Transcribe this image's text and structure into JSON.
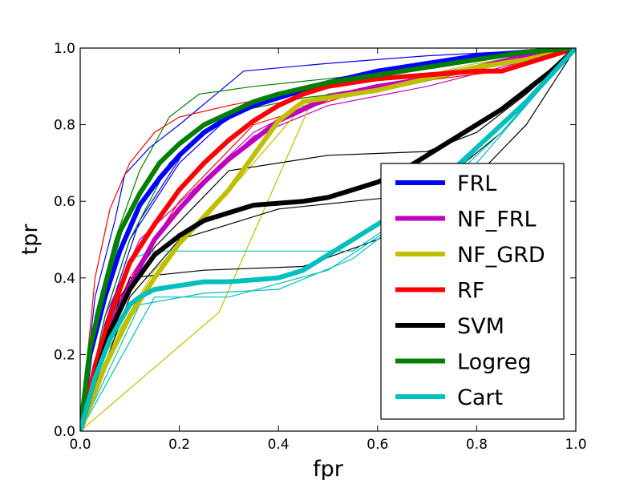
{
  "chart_data": {
    "type": "line",
    "xlabel": "fpr",
    "ylabel": "tpr",
    "xlim": [
      0.0,
      1.0
    ],
    "ylim": [
      0.0,
      1.0
    ],
    "xticks": [
      "0.0",
      "0.2",
      "0.4",
      "0.6",
      "0.8",
      "1.0"
    ],
    "yticks": [
      "0.0",
      "0.2",
      "0.4",
      "0.6",
      "0.8",
      "1.0"
    ],
    "grid": false,
    "legend_position": "lower-right",
    "series": [
      {
        "name": "FRL",
        "color": "#0000ff",
        "x": [
          0.0,
          0.02,
          0.05,
          0.08,
          0.12,
          0.16,
          0.2,
          0.25,
          0.3,
          0.35,
          0.4,
          0.5,
          0.6,
          0.7,
          0.8,
          0.9,
          1.0
        ],
        "y": [
          0.0,
          0.2,
          0.35,
          0.47,
          0.59,
          0.66,
          0.72,
          0.78,
          0.82,
          0.85,
          0.87,
          0.91,
          0.94,
          0.96,
          0.98,
          0.99,
          1.0
        ],
        "runs": [
          {
            "x": [
              0.0,
              0.03,
              0.07,
              0.09,
              0.14,
              0.2,
              0.33,
              0.5,
              0.7,
              1.0
            ],
            "y": [
              0.0,
              0.35,
              0.55,
              0.67,
              0.74,
              0.8,
              0.94,
              0.96,
              0.98,
              1.0
            ]
          },
          {
            "x": [
              0.0,
              0.05,
              0.1,
              0.2,
              0.3,
              0.45,
              0.6,
              0.8,
              1.0
            ],
            "y": [
              0.0,
              0.3,
              0.5,
              0.7,
              0.82,
              0.9,
              0.94,
              0.97,
              1.0
            ]
          },
          {
            "x": [
              0.0,
              0.05,
              0.12,
              0.22,
              0.32,
              0.45,
              0.6,
              0.8,
              1.0
            ],
            "y": [
              0.0,
              0.28,
              0.55,
              0.75,
              0.84,
              0.9,
              0.93,
              0.97,
              1.0
            ]
          }
        ]
      },
      {
        "name": "NF_FRL",
        "color": "#bf00bf",
        "x": [
          0.0,
          0.03,
          0.06,
          0.1,
          0.15,
          0.2,
          0.25,
          0.3,
          0.35,
          0.4,
          0.45,
          0.5,
          0.6,
          0.7,
          0.8,
          0.9,
          1.0
        ],
        "y": [
          0.0,
          0.15,
          0.27,
          0.38,
          0.5,
          0.58,
          0.65,
          0.71,
          0.76,
          0.81,
          0.84,
          0.87,
          0.9,
          0.92,
          0.95,
          0.98,
          1.0
        ],
        "runs": [
          {
            "x": [
              0.0,
              0.06,
              0.14,
              0.25,
              0.35,
              0.5,
              0.7,
              1.0
            ],
            "y": [
              0.0,
              0.25,
              0.48,
              0.65,
              0.77,
              0.85,
              0.9,
              1.0
            ]
          },
          {
            "x": [
              0.0,
              0.05,
              0.12,
              0.22,
              0.35,
              0.5,
              0.75,
              1.0
            ],
            "y": [
              0.0,
              0.3,
              0.5,
              0.62,
              0.78,
              0.88,
              0.93,
              1.0
            ]
          }
        ]
      },
      {
        "name": "NF_GRD",
        "color": "#bfbf00",
        "x": [
          0.0,
          0.05,
          0.1,
          0.15,
          0.2,
          0.25,
          0.3,
          0.35,
          0.4,
          0.45,
          0.5,
          0.6,
          0.7,
          0.8,
          0.9,
          1.0
        ],
        "y": [
          0.0,
          0.17,
          0.3,
          0.4,
          0.49,
          0.56,
          0.63,
          0.72,
          0.81,
          0.86,
          0.87,
          0.89,
          0.92,
          0.95,
          0.97,
          1.0
        ],
        "runs": [
          {
            "x": [
              0.0,
              0.28,
              0.47,
              0.6,
              0.8,
              1.0
            ],
            "y": [
              0.0,
              0.31,
              0.87,
              0.9,
              0.95,
              1.0
            ]
          },
          {
            "x": [
              0.0,
              0.05,
              0.15,
              0.25,
              0.45,
              0.6,
              0.8,
              1.0
            ],
            "y": [
              0.0,
              0.2,
              0.42,
              0.55,
              0.85,
              0.9,
              0.96,
              1.0
            ]
          }
        ]
      },
      {
        "name": "RF",
        "color": "#ff0000",
        "x": [
          0.0,
          0.03,
          0.06,
          0.1,
          0.15,
          0.2,
          0.25,
          0.3,
          0.35,
          0.4,
          0.45,
          0.5,
          0.6,
          0.7,
          0.8,
          0.85,
          0.9,
          0.95,
          1.0
        ],
        "y": [
          0.0,
          0.17,
          0.3,
          0.44,
          0.54,
          0.63,
          0.7,
          0.76,
          0.81,
          0.85,
          0.88,
          0.9,
          0.92,
          0.93,
          0.94,
          0.94,
          0.96,
          0.98,
          1.0
        ],
        "runs": [
          {
            "x": [
              0.0,
              0.03,
              0.06,
              0.1,
              0.15,
              0.2,
              0.3,
              0.5,
              0.7,
              1.0
            ],
            "y": [
              0.0,
              0.4,
              0.58,
              0.7,
              0.78,
              0.82,
              0.85,
              0.9,
              0.93,
              1.0
            ]
          },
          {
            "x": [
              0.0,
              0.05,
              0.1,
              0.2,
              0.35,
              0.6,
              0.85,
              1.0
            ],
            "y": [
              0.0,
              0.25,
              0.4,
              0.6,
              0.8,
              0.9,
              0.94,
              1.0
            ]
          }
        ]
      },
      {
        "name": "SVM",
        "color": "#000000",
        "x": [
          0.0,
          0.03,
          0.06,
          0.1,
          0.15,
          0.2,
          0.25,
          0.3,
          0.35,
          0.4,
          0.45,
          0.5,
          0.55,
          0.6,
          0.65,
          0.7,
          0.75,
          0.8,
          0.85,
          0.9,
          0.95,
          1.0
        ],
        "y": [
          0.0,
          0.14,
          0.26,
          0.37,
          0.46,
          0.51,
          0.55,
          0.57,
          0.59,
          0.595,
          0.6,
          0.61,
          0.63,
          0.65,
          0.68,
          0.72,
          0.76,
          0.8,
          0.84,
          0.89,
          0.94,
          1.0
        ],
        "runs": [
          {
            "x": [
              0.0,
              0.08,
              0.15,
              0.3,
              0.5,
              0.7,
              0.8,
              0.9,
              1.0
            ],
            "y": [
              0.0,
              0.35,
              0.48,
              0.68,
              0.72,
              0.73,
              0.78,
              0.88,
              1.0
            ]
          },
          {
            "x": [
              0.0,
              0.1,
              0.2,
              0.4,
              0.55,
              0.7,
              0.85,
              1.0
            ],
            "y": [
              0.0,
              0.35,
              0.5,
              0.58,
              0.6,
              0.62,
              0.78,
              1.0
            ]
          },
          {
            "x": [
              0.0,
              0.1,
              0.25,
              0.45,
              0.6,
              0.75,
              0.9,
              1.0
            ],
            "y": [
              0.0,
              0.4,
              0.42,
              0.43,
              0.5,
              0.6,
              0.8,
              1.0
            ]
          }
        ]
      },
      {
        "name": "Logreg",
        "color": "#007f00",
        "x": [
          0.0,
          0.02,
          0.05,
          0.08,
          0.12,
          0.16,
          0.2,
          0.25,
          0.3,
          0.35,
          0.4,
          0.5,
          0.6,
          0.7,
          0.8,
          0.9,
          1.0
        ],
        "y": [
          0.0,
          0.22,
          0.38,
          0.52,
          0.62,
          0.7,
          0.75,
          0.8,
          0.83,
          0.86,
          0.88,
          0.91,
          0.93,
          0.95,
          0.97,
          0.99,
          1.0
        ],
        "runs": [
          {
            "x": [
              0.0,
              0.03,
              0.07,
              0.12,
              0.18,
              0.24,
              0.35,
              0.5,
              0.7,
              1.0
            ],
            "y": [
              0.0,
              0.3,
              0.5,
              0.68,
              0.82,
              0.88,
              0.9,
              0.92,
              0.95,
              1.0
            ]
          },
          {
            "x": [
              0.0,
              0.05,
              0.1,
              0.18,
              0.3,
              0.45,
              0.65,
              1.0
            ],
            "y": [
              0.0,
              0.3,
              0.5,
              0.7,
              0.83,
              0.87,
              0.9,
              1.0
            ]
          }
        ]
      },
      {
        "name": "Cart",
        "color": "#00bfbf",
        "x": [
          0.0,
          0.03,
          0.06,
          0.1,
          0.12,
          0.15,
          0.2,
          0.25,
          0.3,
          0.35,
          0.4,
          0.45,
          0.5,
          0.55,
          0.6,
          0.65,
          0.7,
          0.75,
          0.8,
          0.85,
          0.9,
          0.95,
          1.0
        ],
        "y": [
          0.0,
          0.14,
          0.24,
          0.33,
          0.35,
          0.37,
          0.38,
          0.39,
          0.39,
          0.395,
          0.4,
          0.42,
          0.46,
          0.5,
          0.54,
          0.58,
          0.63,
          0.68,
          0.74,
          0.8,
          0.86,
          0.93,
          1.0
        ],
        "runs": [
          {
            "x": [
              0.0,
              0.1,
              0.15,
              0.3,
              0.45,
              0.55,
              0.7,
              0.85,
              1.0
            ],
            "y": [
              0.0,
              0.45,
              0.47,
              0.47,
              0.47,
              0.47,
              0.6,
              0.8,
              1.0
            ]
          },
          {
            "x": [
              0.0,
              0.12,
              0.25,
              0.4,
              0.55,
              0.7,
              0.85,
              1.0
            ],
            "y": [
              0.0,
              0.33,
              0.36,
              0.37,
              0.45,
              0.6,
              0.78,
              1.0
            ]
          },
          {
            "x": [
              0.0,
              0.15,
              0.3,
              0.5,
              0.65,
              0.8,
              1.0
            ],
            "y": [
              0.0,
              0.35,
              0.35,
              0.42,
              0.55,
              0.7,
              1.0
            ]
          }
        ]
      }
    ]
  }
}
